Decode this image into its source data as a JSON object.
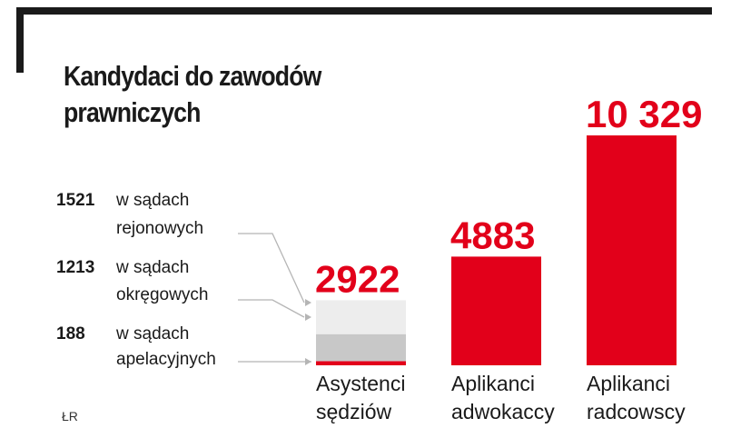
{
  "chart_data": {
    "type": "bar",
    "title_lines": [
      "Kandydaci do zawodów",
      "prawniczych"
    ],
    "bars": [
      {
        "value": 2922,
        "value_label": "2922",
        "category_lines": [
          "Asystenci",
          "sędziów"
        ],
        "segments": [
          {
            "value": 188,
            "color": "#e2001a",
            "label_value": "188",
            "label_lines": [
              "w sądach",
              "apelacyjnych"
            ]
          },
          {
            "value": 1213,
            "color": "#c8c8c8",
            "label_value": "1213",
            "label_lines": [
              "w sądach",
              "okręgowych"
            ]
          },
          {
            "value": 1521,
            "color": "#ededed",
            "label_value": "1521",
            "label_lines": [
              "w sądach",
              "rejonowych"
            ]
          }
        ]
      },
      {
        "value": 4883,
        "value_label": "4883",
        "category_lines": [
          "Aplikanci",
          "adwokaccy"
        ],
        "color": "#e2001a"
      },
      {
        "value": 10329,
        "value_label": "10 329",
        "category_lines": [
          "Aplikanci",
          "radcowscy"
        ],
        "color": "#e2001a"
      }
    ]
  },
  "source": "ŁR"
}
